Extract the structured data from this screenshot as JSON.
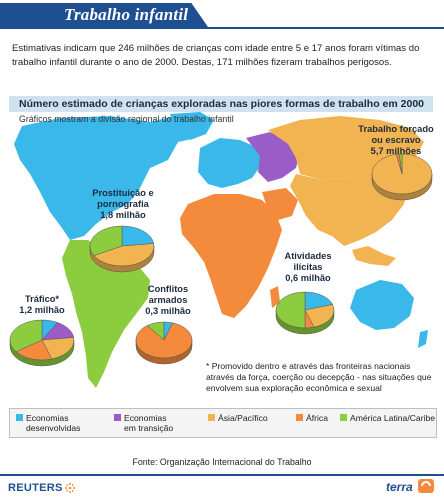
{
  "header": {
    "title": "Trabalho infantil"
  },
  "intro": "Estimativas indicam que 246 milhões de crianças com idade entre 5 e 17 anos foram vítimas do trabalho infantil durante o ano de 2000. Destas, 171 milhões fizeram trabalhos perigosos.",
  "chart": {
    "title": "Número estimado de crianças exploradas nas piores formas de trabalho em 2000",
    "subtitle": "Gráficos mostram a divisão regional do trabalho infantil"
  },
  "colors": {
    "economias_desenvolvidas": "#3ab8ea",
    "economias_em_transicao": "#9a5cc7",
    "asia_pacifico": "#f2b450",
    "africa": "#f48a3c",
    "america_latina_caribe": "#8ccd3f"
  },
  "pies": [
    {
      "id": "trabalho-forcado",
      "line1": "Trabalho forçado",
      "line2": "ou escravo",
      "line3": "5,7 milhões",
      "shares": {
        "asia_pacifico": 0.97,
        "africa": 0.015,
        "america_latina_caribe": 0.015
      }
    },
    {
      "id": "prostituicao",
      "line1": "Prostituição e",
      "line2": "pornografia",
      "line3": "1,8 milhão",
      "shares": {
        "economias_desenvolvidas": 0.23,
        "asia_pacifico": 0.44,
        "america_latina_caribe": 0.33
      }
    },
    {
      "id": "atividades-ilicitas",
      "line1": "Atividades",
      "line2": "ilícitas",
      "line3": "0,6 milhão",
      "shares": {
        "economias_desenvolvidas": 0.2,
        "asia_pacifico": 0.25,
        "africa": 0.05,
        "america_latina_caribe": 0.5
      }
    },
    {
      "id": "conflitos-armados",
      "line1": "Conflitos",
      "line2": "armados",
      "line3": "0,3 milhão",
      "shares": {
        "africa": 0.85,
        "america_latina_caribe": 0.1,
        "economias_desenvolvidas": 0.05
      }
    },
    {
      "id": "trafico",
      "line1": "Tráfico*",
      "line2": "1,2 milhão",
      "line3": "",
      "shares": {
        "economias_em_transicao": 0.15,
        "asia_pacifico": 0.22,
        "africa": 0.2,
        "america_latina_caribe": 0.35,
        "economias_desenvolvidas": 0.08
      }
    }
  ],
  "footnote": "* Promovido dentro e através das fronteiras nacionais através da força, coerção ou decepção - nas situações que envolvem sua exploração econômica e sexual",
  "legend": [
    {
      "key": "economias_desenvolvidas",
      "line1": "Economias",
      "line2": "desenvolvidas"
    },
    {
      "key": "economias_em_transicao",
      "line1": "Economias",
      "line2": "em transição"
    },
    {
      "key": "asia_pacifico",
      "line1": "Ásia/Pacífico",
      "line2": ""
    },
    {
      "key": "africa",
      "line1": "África",
      "line2": ""
    },
    {
      "key": "america_latina_caribe",
      "line1": "América Latina/Caribe",
      "line2": ""
    }
  ],
  "source": "Fonte: Organização Internacional do Trabalho",
  "footer": {
    "left_logo": "REUTERS",
    "right_logo": "terra"
  }
}
